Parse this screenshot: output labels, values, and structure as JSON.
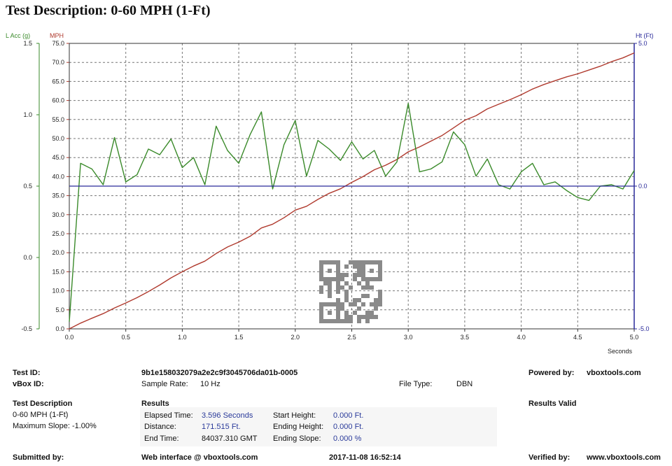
{
  "title": "Test Description: 0-60 MPH (1-Ft)",
  "chart_data": {
    "type": "line",
    "xlabel": "Seconds",
    "xlim": [
      0,
      5
    ],
    "xticks": [
      "0.0",
      "0.5",
      "1.0",
      "1.5",
      "2.0",
      "2.5",
      "3.0",
      "3.5",
      "4.0",
      "4.5",
      "5.0"
    ],
    "axes": {
      "lacc": {
        "label": "L Acc (g)",
        "range": [
          -0.5,
          1.5
        ],
        "ticks": [
          "-0.5",
          "0.0",
          "0.5",
          "1.0",
          "1.5"
        ],
        "color": "#3a8a2a"
      },
      "mph": {
        "label": "MPH",
        "range": [
          0,
          75
        ],
        "ticks": [
          "0.0",
          "5.0",
          "10.0",
          "15.0",
          "20.0",
          "25.0",
          "30.0",
          "35.0",
          "40.0",
          "45.0",
          "50.0",
          "55.0",
          "60.0",
          "65.0",
          "70.0",
          "75.0"
        ],
        "color": "#b03a2e"
      },
      "ht": {
        "label": "Ht (Ft)",
        "range": [
          -5,
          5
        ],
        "ticks": [
          "-5.0",
          "0.0",
          "5.0"
        ],
        "color": "#2a2a9a"
      }
    },
    "series": [
      {
        "axis": "mph",
        "color": "#b03a2e",
        "x": [
          0,
          0.1,
          0.2,
          0.3,
          0.4,
          0.5,
          0.6,
          0.7,
          0.8,
          0.9,
          1.0,
          1.1,
          1.2,
          1.3,
          1.4,
          1.5,
          1.6,
          1.7,
          1.8,
          1.9,
          2.0,
          2.1,
          2.2,
          2.3,
          2.4,
          2.5,
          2.6,
          2.7,
          2.8,
          2.9,
          3.0,
          3.1,
          3.2,
          3.3,
          3.4,
          3.5,
          3.6,
          3.7,
          3.8,
          3.9,
          4.0,
          4.1,
          4.2,
          4.3,
          4.4,
          4.5,
          4.6,
          4.7,
          4.8,
          4.9,
          5.0
        ],
        "values": [
          0,
          1.5,
          2.8,
          4.0,
          5.5,
          6.8,
          8.2,
          9.8,
          11.5,
          13.4,
          15.0,
          16.5,
          17.8,
          19.8,
          21.5,
          22.8,
          24.3,
          26.5,
          27.5,
          29.2,
          31.2,
          32.2,
          34.0,
          35.6,
          36.8,
          38.5,
          40.0,
          41.8,
          43.0,
          44.5,
          46.5,
          47.8,
          49.3,
          50.8,
          52.8,
          54.8,
          56.0,
          57.8,
          59.0,
          60.2,
          61.5,
          63.0,
          64.2,
          65.2,
          66.2,
          67.0,
          68.0,
          69.0,
          70.2,
          71.2,
          72.5
        ]
      },
      {
        "axis": "lacc",
        "color": "#3a8a2a",
        "x": [
          0,
          0.1,
          0.2,
          0.3,
          0.4,
          0.5,
          0.6,
          0.7,
          0.8,
          0.9,
          1.0,
          1.1,
          1.2,
          1.3,
          1.4,
          1.5,
          1.6,
          1.7,
          1.8,
          1.9,
          2.0,
          2.1,
          2.2,
          2.3,
          2.4,
          2.5,
          2.6,
          2.7,
          2.8,
          2.9,
          3.0,
          3.1,
          3.2,
          3.3,
          3.4,
          3.5,
          3.6,
          3.7,
          3.8,
          3.9,
          4.0,
          4.1,
          4.2,
          4.3,
          4.4,
          4.5,
          4.6,
          4.7,
          4.8,
          4.9,
          5.0
        ],
        "values": [
          -0.45,
          0.66,
          0.62,
          0.51,
          0.84,
          0.53,
          0.58,
          0.76,
          0.72,
          0.83,
          0.63,
          0.7,
          0.51,
          0.92,
          0.75,
          0.66,
          0.86,
          1.02,
          0.48,
          0.79,
          0.96,
          0.57,
          0.82,
          0.76,
          0.68,
          0.81,
          0.69,
          0.75,
          0.57,
          0.67,
          1.08,
          0.6,
          0.62,
          0.67,
          0.88,
          0.79,
          0.57,
          0.69,
          0.51,
          0.48,
          0.6,
          0.66,
          0.51,
          0.53,
          0.47,
          0.42,
          0.4,
          0.5,
          0.51,
          0.48,
          0.61
        ]
      },
      {
        "axis": "ht",
        "color": "#2a2a9a",
        "x": [
          0,
          5
        ],
        "values": [
          0.0,
          0.0
        ]
      }
    ]
  },
  "info": {
    "test_id_label": "Test ID:",
    "test_id_value": "9b1e158032079a2e2c9f3045706da01b-0005",
    "powered_by_label": "Powered by:",
    "powered_by_value": "vboxtools.com",
    "vbox_id_label": "vBox ID:",
    "sample_rate_label": "Sample Rate:",
    "sample_rate_value": "10 Hz",
    "file_type_label": "File Type:",
    "file_type_value": "DBN",
    "test_desc_label": "Test Description",
    "test_desc_value": "0-60 MPH (1-Ft)",
    "max_slope": "Maximum Slope: -1.00%",
    "results_label": "Results",
    "results_valid": "Results Valid",
    "elapsed_label": "Elapsed Time:",
    "elapsed_value": "3.596 Seconds",
    "distance_label": "Distance:",
    "distance_value": "171.515 Ft.",
    "end_time_label": "End Time:",
    "end_time_value": "84037.310 GMT",
    "start_height_label": "Start Height:",
    "start_height_value": "0.000 Ft.",
    "ending_height_label": "Ending Height:",
    "ending_height_value": "0.000 Ft.",
    "ending_slope_label": "Ending Slope:",
    "ending_slope_value": "0.000 %",
    "submitted_label": "Submitted by:",
    "web_interface": "Web interface @ vboxtools.com",
    "timestamp": "2017-11-08 16:52:14",
    "verified_label": "Verified by:",
    "verified_value": "www.vboxtools.com"
  }
}
